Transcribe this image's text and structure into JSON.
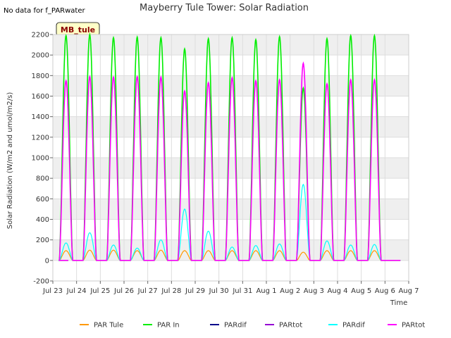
{
  "chart_data": {
    "type": "line",
    "title": "Mayberry Tule Tower: Solar Radiation",
    "xlabel": "Time",
    "ylabel": "Solar Radiation (W/m2 and umol/m2/s)",
    "no_data_note": "No data for f_PARwater",
    "station_badge": "MB_tule",
    "ylim": [
      -200,
      2200
    ],
    "yticks": [
      -200,
      0,
      200,
      400,
      600,
      800,
      1000,
      1200,
      1400,
      1600,
      1800,
      2000,
      2200
    ],
    "xlim": [
      0,
      15
    ],
    "xticks": [
      "Jul 23",
      "Jul 24",
      "Jul 25",
      "Jul 26",
      "Jul 27",
      "Jul 28",
      "Jul 29",
      "Jul 30",
      "Jul 31",
      "Aug 1",
      "Aug 2",
      "Aug 3",
      "Aug 4",
      "Aug 5",
      "Aug 6",
      "Aug 7"
    ],
    "legend_position": "bottom",
    "series": [
      {
        "name": "PAR Tule",
        "color": "#ff9900",
        "daily_peak": [
          95,
          100,
          100,
          95,
          100,
          95,
          95,
          95,
          95,
          95,
          80,
          95,
          95,
          95
        ]
      },
      {
        "name": "PAR In",
        "color": "#00ee00",
        "daily_peak": [
          2190,
          2200,
          2170,
          2175,
          2170,
          2060,
          2160,
          2170,
          2150,
          2180,
          1680,
          2160,
          2190,
          2190
        ]
      },
      {
        "name": "PARdif",
        "color": "#00008b",
        "daily_peak": []
      },
      {
        "name": "PARtot",
        "color": "#9400d3",
        "daily_peak": []
      },
      {
        "name": "PARdif",
        "color": "#00ffff",
        "daily_peak": [
          170,
          270,
          150,
          120,
          200,
          500,
          285,
          130,
          145,
          160,
          740,
          190,
          150,
          155
        ]
      },
      {
        "name": "PARtot",
        "color": "#ff00ff",
        "daily_peak": [
          1750,
          1790,
          1785,
          1790,
          1785,
          1650,
          1730,
          1780,
          1750,
          1760,
          1920,
          1720,
          1760,
          1760
        ]
      }
    ]
  }
}
